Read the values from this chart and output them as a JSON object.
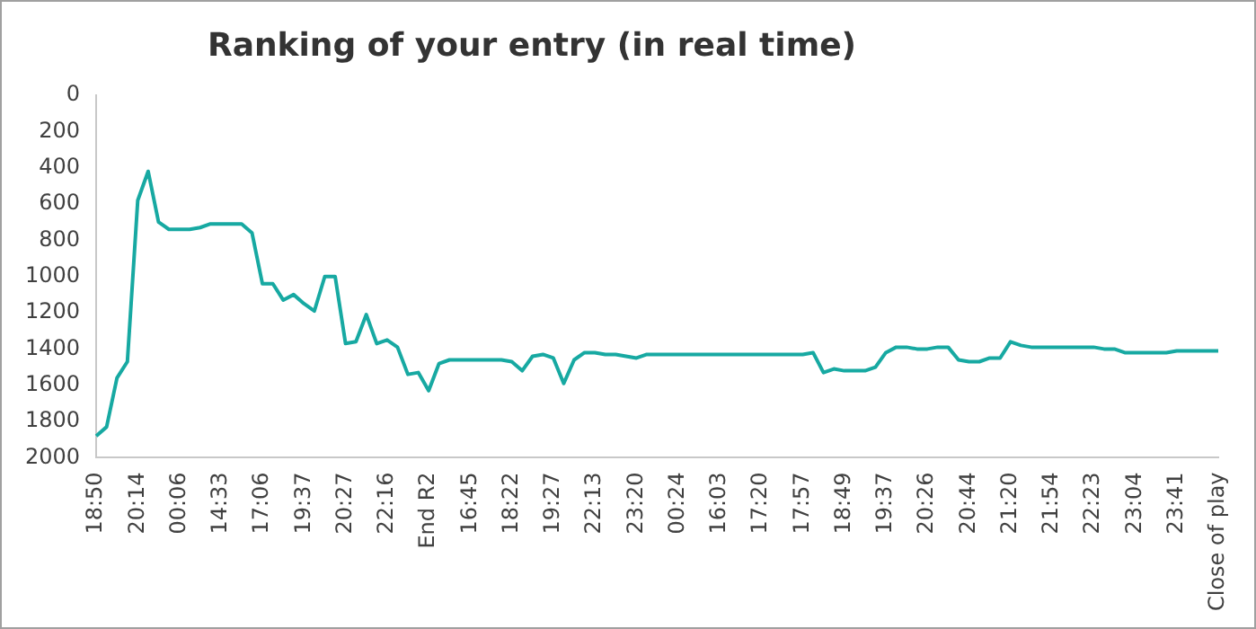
{
  "chart_data": {
    "type": "line",
    "title": "Ranking of your entry (in real time)",
    "categories": [
      "18:50",
      null,
      null,
      null,
      "20:14",
      null,
      null,
      null,
      "00:06",
      null,
      null,
      null,
      "14:33",
      null,
      null,
      null,
      "17:06",
      null,
      null,
      null,
      "19:37",
      null,
      null,
      null,
      "20:27",
      null,
      null,
      null,
      "22:16",
      null,
      null,
      null,
      "End R2",
      null,
      null,
      null,
      "16:45",
      null,
      null,
      null,
      "18:22",
      null,
      null,
      null,
      "19:27",
      null,
      null,
      null,
      "22:13",
      null,
      null,
      null,
      "23:20",
      null,
      null,
      null,
      "00:24",
      null,
      null,
      null,
      "16:03",
      null,
      null,
      null,
      "17:20",
      null,
      null,
      null,
      "17:57",
      null,
      null,
      null,
      "18:49",
      null,
      null,
      null,
      "19:37",
      null,
      null,
      null,
      "20:26",
      null,
      null,
      null,
      "20:44",
      null,
      null,
      null,
      "21:20",
      null,
      null,
      null,
      "21:54",
      null,
      null,
      null,
      "22:23",
      null,
      null,
      null,
      "23:04",
      null,
      null,
      null,
      "23:41",
      null,
      null,
      null,
      "Close of play"
    ],
    "series": [
      {
        "color": "#17a9a2",
        "values": [
          1880,
          1830,
          1560,
          1470,
          580,
          420,
          700,
          740,
          740,
          740,
          730,
          710,
          710,
          710,
          710,
          760,
          1040,
          1040,
          1130,
          1100,
          1150,
          1190,
          1000,
          1000,
          1370,
          1360,
          1210,
          1370,
          1350,
          1390,
          1540,
          1530,
          1630,
          1480,
          1460,
          1460,
          1460,
          1460,
          1460,
          1460,
          1470,
          1520,
          1440,
          1430,
          1450,
          1590,
          1460,
          1420,
          1420,
          1430,
          1430,
          1440,
          1450,
          1430,
          1430,
          1430,
          1430,
          1430,
          1430,
          1430,
          1430,
          1430,
          1430,
          1430,
          1430,
          1430,
          1430,
          1430,
          1430,
          1420,
          1530,
          1510,
          1520,
          1520,
          1520,
          1500,
          1420,
          1390,
          1390,
          1400,
          1400,
          1390,
          1390,
          1460,
          1470,
          1470,
          1450,
          1450,
          1360,
          1380,
          1390,
          1390,
          1390,
          1390,
          1390,
          1390,
          1390,
          1400,
          1400,
          1420,
          1420,
          1420,
          1420,
          1420,
          1410,
          1410,
          1410,
          1410,
          1410
        ]
      }
    ],
    "ylim": [
      2000,
      0
    ],
    "yticks": [
      0,
      200,
      400,
      600,
      800,
      1000,
      1200,
      1400,
      1600,
      1800,
      2000
    ],
    "grid": false,
    "legend": false,
    "marker": "none",
    "line_style": "solid"
  }
}
